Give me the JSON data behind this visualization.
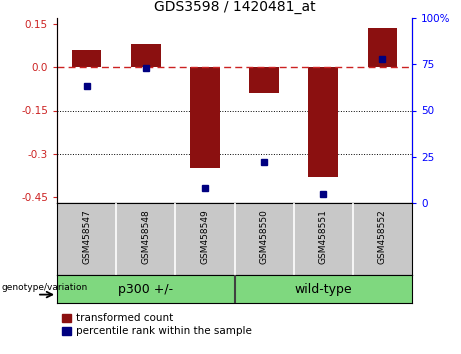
{
  "title": "GDS3598 / 1420481_at",
  "samples": [
    "GSM458547",
    "GSM458548",
    "GSM458549",
    "GSM458550",
    "GSM458551",
    "GSM458552"
  ],
  "bar_values": [
    0.06,
    0.08,
    -0.35,
    -0.09,
    -0.38,
    0.135
  ],
  "percentile_values": [
    63,
    73,
    8,
    22,
    5,
    78
  ],
  "groups": [
    {
      "label": "p300 +/-",
      "span": [
        0,
        2
      ]
    },
    {
      "label": "wild-type",
      "span": [
        3,
        5
      ]
    }
  ],
  "group_boundary": 2.5,
  "ylim_left": [
    -0.47,
    0.17
  ],
  "ylim_right": [
    0,
    100
  ],
  "left_ticks": [
    0.15,
    0.0,
    -0.15,
    -0.3,
    -0.45
  ],
  "right_ticks": [
    100,
    75,
    50,
    25,
    0
  ],
  "dotted_lines": [
    -0.15,
    -0.3
  ],
  "bar_color": "#8B1010",
  "dot_color": "#000080",
  "bar_width": 0.5,
  "legend_entries": [
    "transformed count",
    "percentile rank within the sample"
  ],
  "xlabel_group": "genotype/variation",
  "sample_bg": "#c8c8c8",
  "group_bg": "#7FD87F",
  "group_divider_color": "#404040"
}
